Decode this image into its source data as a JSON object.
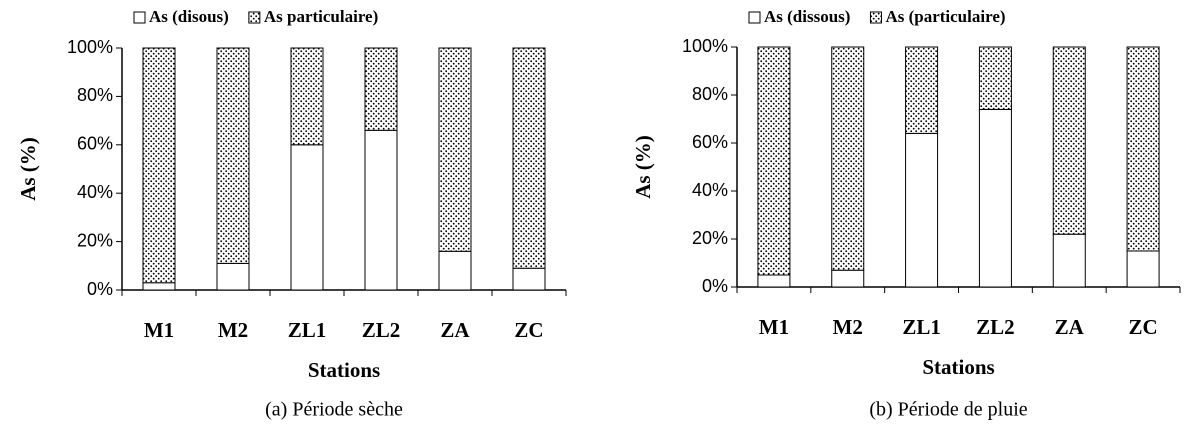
{
  "chart_data": [
    {
      "type": "stacked_bar",
      "caption": "(a) Période sèche",
      "xlabel": "Stations",
      "ylabel": "As (%)",
      "categories": [
        "M1",
        "M2",
        "ZL1",
        "ZL2",
        "ZA",
        "ZC"
      ],
      "series": [
        {
          "name": "As (disous)",
          "color": "#ffffff",
          "values": [
            3,
            11,
            60,
            66,
            16,
            9
          ]
        },
        {
          "name": "As particulaire)",
          "color": "#000000",
          "pattern": "dots",
          "values": [
            97,
            89,
            40,
            34,
            84,
            91
          ]
        }
      ],
      "ylim": [
        0,
        100
      ],
      "yticks": [
        {
          "value": 0,
          "label": "0%"
        },
        {
          "value": 20,
          "label": "20%"
        },
        {
          "value": 40,
          "label": "40%"
        },
        {
          "value": 60,
          "label": "60%"
        },
        {
          "value": 80,
          "label": "80%"
        },
        {
          "value": 100,
          "label": "100%"
        }
      ],
      "legend": "top"
    },
    {
      "type": "stacked_bar",
      "caption": "(b) Période de pluie",
      "xlabel": "Stations",
      "ylabel": "As (%)",
      "categories": [
        "M1",
        "M2",
        "ZL1",
        "ZL2",
        "ZA",
        "ZC"
      ],
      "series": [
        {
          "name": "As (dissous)",
          "color": "#ffffff",
          "values": [
            5,
            7,
            64,
            74,
            22,
            15
          ]
        },
        {
          "name": "As (particulaire)",
          "color": "#000000",
          "pattern": "dots",
          "values": [
            95,
            93,
            36,
            26,
            78,
            85
          ]
        }
      ],
      "ylim": [
        0,
        100
      ],
      "yticks": [
        {
          "value": 0,
          "label": "0%"
        },
        {
          "value": 20,
          "label": "20%"
        },
        {
          "value": 40,
          "label": "40%"
        },
        {
          "value": 60,
          "label": "60%"
        },
        {
          "value": 80,
          "label": "80%"
        },
        {
          "value": 100,
          "label": "100%"
        }
      ],
      "legend": "top"
    }
  ]
}
